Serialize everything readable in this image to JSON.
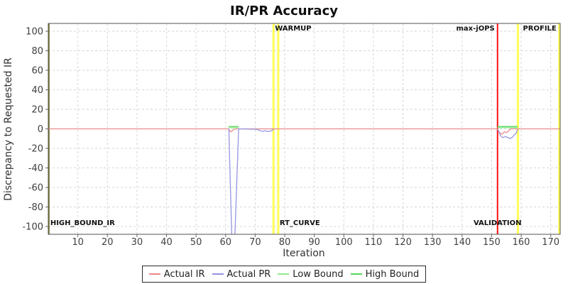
{
  "chart_data": {
    "type": "line",
    "title": "IR/PR Accuracy",
    "xlabel": "Iteration",
    "ylabel": "Discrepancy to Requested IR",
    "xlim": [
      0,
      173.2
    ],
    "ylim": [
      -108,
      108
    ],
    "xticks": [
      10,
      20,
      30,
      40,
      50,
      60,
      70,
      80,
      90,
      100,
      110,
      120,
      130,
      140,
      150,
      160,
      170
    ],
    "yticks": [
      -100,
      -80,
      -60,
      -40,
      -20,
      0,
      20,
      40,
      60,
      80,
      100
    ],
    "grid": true,
    "grid_color": "#d6d6d6",
    "frame_color": "#515151",
    "legend_position": "bottom",
    "series": [
      {
        "name": "Actual IR",
        "color": "#ea8888",
        "segments": [
          [
            [
              0,
              0
            ],
            [
              61,
              0
            ],
            [
              61.7,
              -3
            ],
            [
              62.5,
              -1.2
            ],
            [
              63.3,
              0
            ],
            [
              151.9,
              0
            ],
            [
              152.7,
              -4
            ],
            [
              153.5,
              -5.5
            ],
            [
              154.3,
              -3
            ],
            [
              155.1,
              -3.8
            ],
            [
              155.9,
              -1.5
            ],
            [
              156.5,
              0
            ],
            [
              173.2,
              0
            ]
          ]
        ]
      },
      {
        "name": "Actual PR",
        "color": "#9595e2",
        "segments": [
          [
            [
              61.1,
              0
            ],
            [
              62.1,
              -112
            ],
            [
              63.1,
              -112
            ],
            [
              64.4,
              0
            ],
            [
              70.5,
              -0.4
            ],
            [
              71.5,
              -1.6
            ],
            [
              72.5,
              -2.6
            ],
            [
              73.4,
              -1.8
            ],
            [
              74.2,
              -2.8
            ],
            [
              75.2,
              -2.4
            ],
            [
              76,
              -1
            ],
            [
              76.3,
              -0.6
            ]
          ],
          [
            [
              152.1,
              -0.5
            ],
            [
              152.9,
              -6.5
            ],
            [
              153.7,
              -9
            ],
            [
              154.5,
              -8
            ],
            [
              155.3,
              -8.6
            ],
            [
              156.1,
              -9.8
            ],
            [
              156.9,
              -9
            ],
            [
              157.7,
              -6
            ],
            [
              158.3,
              -4.5
            ],
            [
              158.8,
              -0.5
            ]
          ]
        ]
      },
      {
        "name": "Low Bound",
        "color": "#8dea8d",
        "segments": [
          [
            [
              61,
              1.2
            ],
            [
              64.4,
              1.2
            ]
          ],
          [
            [
              152,
              1.2
            ],
            [
              158.8,
              1.2
            ]
          ]
        ]
      },
      {
        "name": "High Bound",
        "color": "#55d855",
        "segments": [
          [
            [
              61,
              2.4
            ],
            [
              64.4,
              2.4
            ]
          ],
          [
            [
              152,
              2.4
            ],
            [
              158.8,
              2.4
            ]
          ]
        ]
      }
    ],
    "markers": [
      {
        "x": 0.2,
        "color": "#78782f",
        "width": 2,
        "labels": [
          {
            "text": "HIGH_BOUND_IR",
            "pos": "bottom-start"
          }
        ]
      },
      {
        "x": 76.2,
        "color": "#ffff55",
        "width": 3,
        "labels": [
          {
            "text": "WARMUP",
            "pos": "top-start"
          }
        ]
      },
      {
        "x": 77.8,
        "color": "#ffff55",
        "width": 3,
        "labels": [
          {
            "text": "RT_CURVE",
            "pos": "bottom-start"
          }
        ]
      },
      {
        "x": 152,
        "color": "#ff1111",
        "width": 2,
        "labels": [
          {
            "text": "max-jOPS",
            "pos": "top-end"
          },
          {
            "text": "VALIDATION",
            "pos": "bottom-middle"
          }
        ]
      },
      {
        "x": 158.9,
        "color": "#ffff55",
        "width": 3,
        "labels": []
      },
      {
        "x": 172.9,
        "color": "#ffff55",
        "width": 3,
        "labels": [
          {
            "text": "PROFILE",
            "pos": "top-end"
          }
        ]
      }
    ]
  }
}
